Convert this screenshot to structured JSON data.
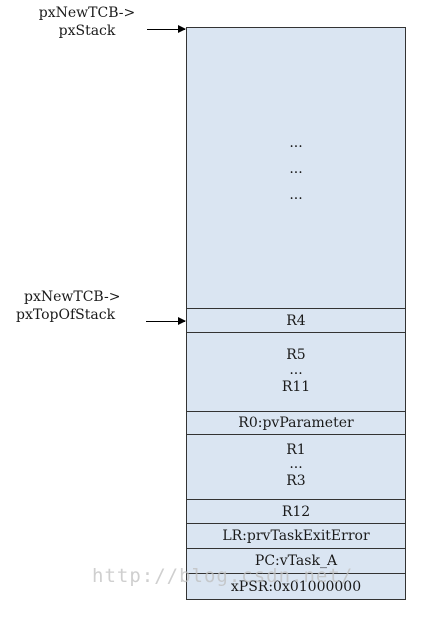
{
  "labels": {
    "stack_ptr": [
      "pxNewTCB->",
      "pxStack"
    ],
    "top_ptr": [
      "pxNewTCB->",
      "pxTopOfStack"
    ]
  },
  "top_region": {
    "dots": [
      "...",
      "...",
      "..."
    ]
  },
  "cells": {
    "r4": "R4",
    "r5_r11": [
      "R5",
      "...",
      "R11"
    ],
    "r0": "R0:pvParameter",
    "r1_r3": [
      "R1",
      "...",
      "R3"
    ],
    "r12": "R12",
    "lr": "LR:prvTaskExitError",
    "pc": "PC:vTask_A",
    "xpsr": "xPSR:0x01000000"
  },
  "watermark": "http://blog.csdn.net/"
}
